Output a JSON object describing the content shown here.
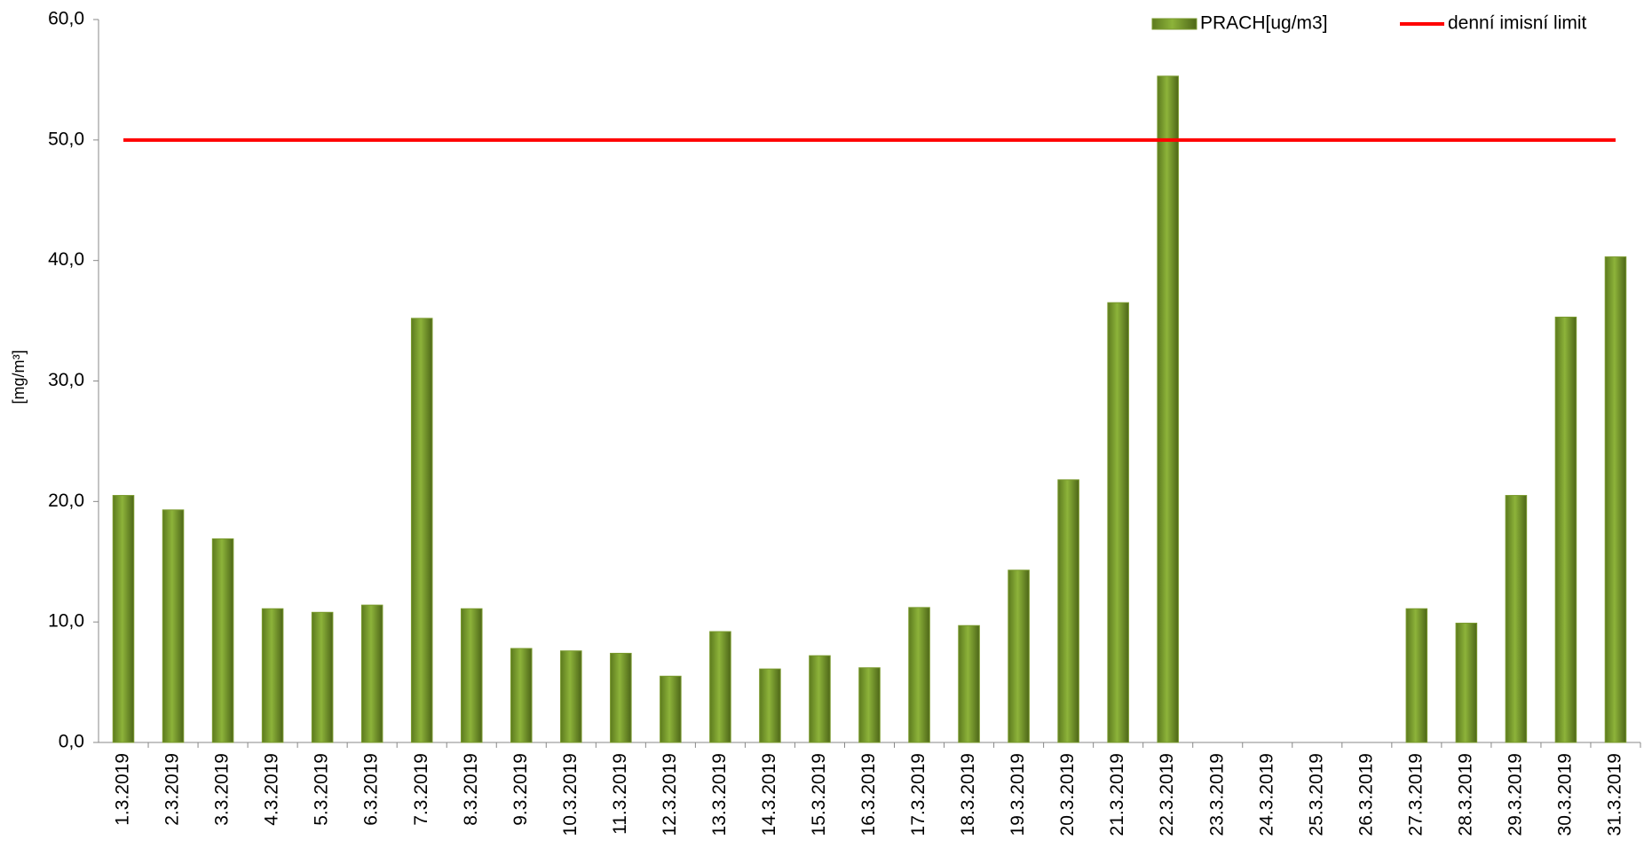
{
  "chart_data": {
    "type": "bar",
    "y_label": "[mg/m³]",
    "categories": [
      "1.3.2019",
      "2.3.2019",
      "3.3.2019",
      "4.3.2019",
      "5.3.2019",
      "6.3.2019",
      "7.3.2019",
      "8.3.2019",
      "9.3.2019",
      "10.3.2019",
      "11.3.2019",
      "12.3.2019",
      "13.3.2019",
      "14.3.2019",
      "15.3.2019",
      "16.3.2019",
      "17.3.2019",
      "18.3.2019",
      "19.3.2019",
      "20.3.2019",
      "21.3.2019",
      "22.3.2019",
      "23.3.2019",
      "24.3.2019",
      "25.3.2019",
      "26.3.2019",
      "27.3.2019",
      "28.3.2019",
      "29.3.2019",
      "30.3.2019",
      "31.3.2019"
    ],
    "series": [
      {
        "name": "PRACH[ug/m3]",
        "type": "bar",
        "color": "#7a9a2e",
        "values": [
          20.5,
          19.3,
          16.9,
          11.1,
          10.8,
          11.4,
          35.2,
          11.1,
          7.8,
          7.6,
          7.4,
          5.5,
          9.2,
          6.1,
          7.2,
          6.2,
          11.2,
          9.7,
          14.3,
          21.8,
          36.5,
          55.3,
          null,
          null,
          null,
          null,
          11.1,
          9.9,
          20.5,
          35.3,
          40.3
        ]
      },
      {
        "name": "denní imisní limit",
        "type": "line",
        "color": "#ff0000",
        "values": [
          50,
          50,
          50,
          50,
          50,
          50,
          50,
          50,
          50,
          50,
          50,
          50,
          50,
          50,
          50,
          50,
          50,
          50,
          50,
          50,
          50,
          50,
          50,
          50,
          50,
          50,
          50,
          50,
          50,
          50,
          50
        ]
      }
    ],
    "ylim": [
      0,
      60
    ],
    "yticks": [
      {
        "value": 0,
        "label": "0,0"
      },
      {
        "value": 10,
        "label": "10,0"
      },
      {
        "value": 20,
        "label": "20,0"
      },
      {
        "value": 30,
        "label": "30,0"
      },
      {
        "value": 40,
        "label": "40,0"
      },
      {
        "value": 50,
        "label": "50,0"
      },
      {
        "value": 60,
        "label": "60,0"
      }
    ],
    "legend": "top-right"
  }
}
